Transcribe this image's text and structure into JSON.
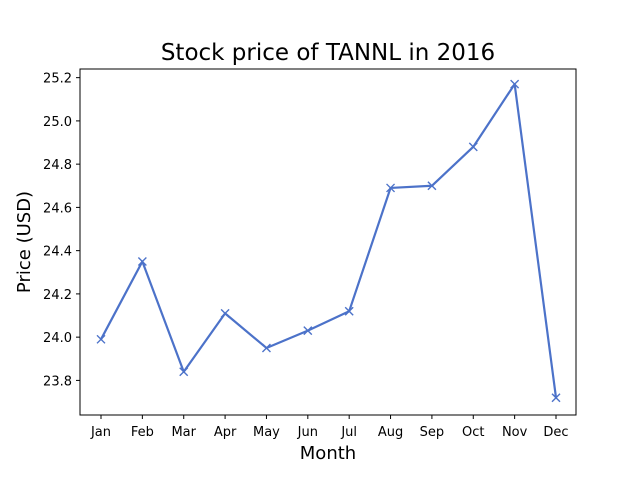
{
  "chart_data": {
    "type": "line",
    "title": "Stock price of TANNL in 2016",
    "xlabel": "Month",
    "ylabel": "Price (USD)",
    "categories": [
      "Jan",
      "Feb",
      "Mar",
      "Apr",
      "May",
      "Jun",
      "Jul",
      "Aug",
      "Sep",
      "Oct",
      "Nov",
      "Dec"
    ],
    "series": [
      {
        "values": [
          23.99,
          24.35,
          23.84,
          24.11,
          23.95,
          24.03,
          24.12,
          24.69,
          24.7,
          24.88,
          25.17,
          23.72
        ],
        "color": "#4c72c9",
        "marker": "x"
      }
    ],
    "ylim": [
      23.64,
      25.24
    ],
    "yticks": [
      "23.8",
      "24.0",
      "24.2",
      "24.4",
      "24.6",
      "24.8",
      "25.0",
      "25.2"
    ],
    "grid": false,
    "legend": "none"
  }
}
